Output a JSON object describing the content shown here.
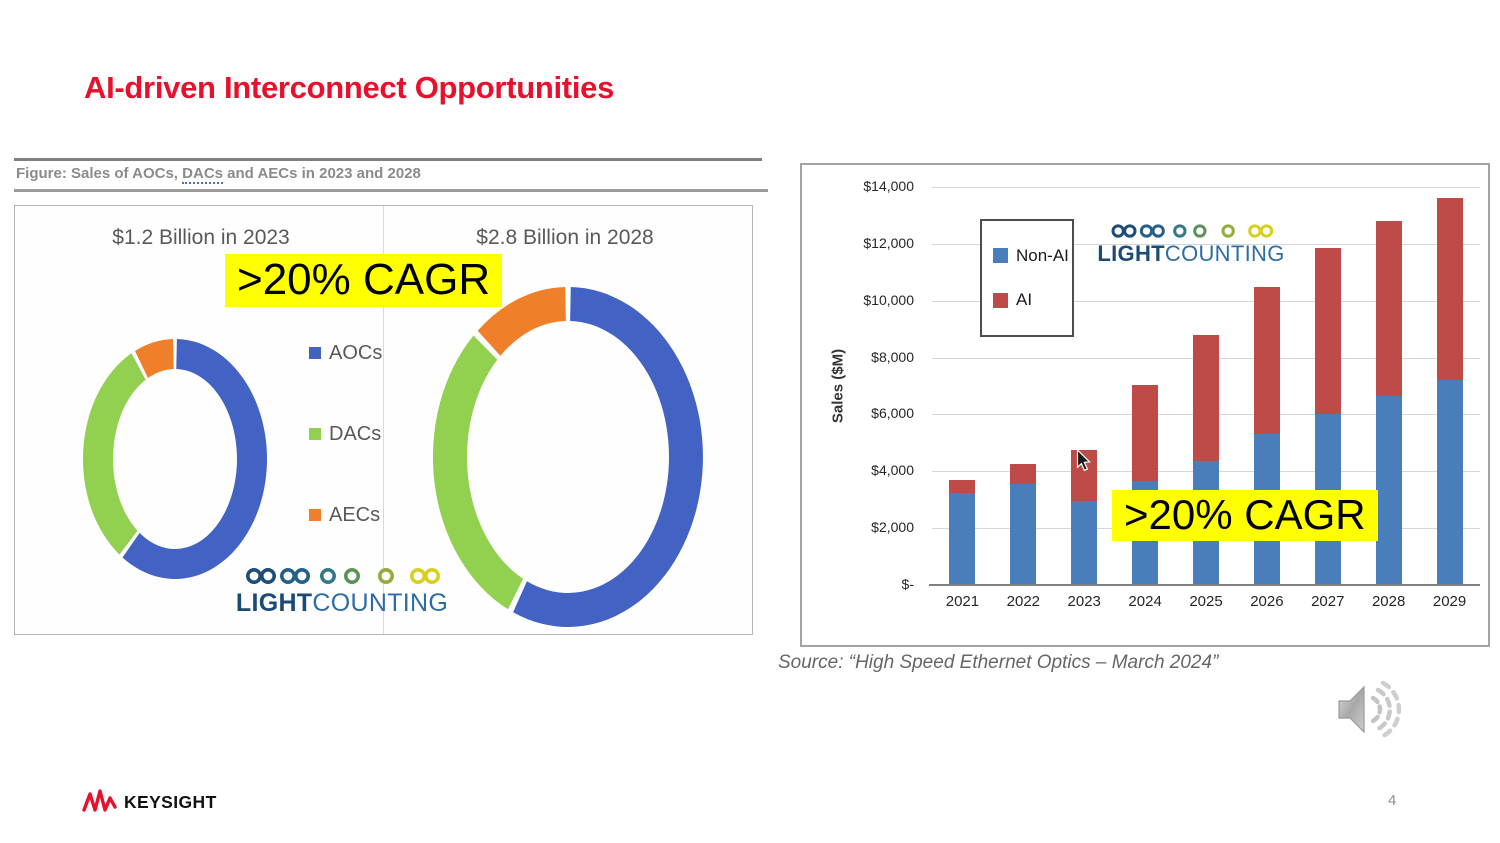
{
  "slide": {
    "title": "AI-driven Interconnect Opportunities",
    "page_number": "4"
  },
  "brand": {
    "keysight_label": "KEYSIGHT",
    "keysight_red": "#e8112d",
    "lc_light": "LIGHT",
    "lc_counting": "COUNTING",
    "lc_navy": "#1b4a77",
    "lc_steel": "#2e6da4"
  },
  "left_figure": {
    "caption_prefix": "Figure: Sales of AOCs, ",
    "caption_dacs": "DACs",
    "caption_suffix": " and AECs in 2023 and 2028",
    "cagr_badge": ">20% CAGR",
    "highlight_color": "#ffff00",
    "legend": [
      {
        "label": "AOCs",
        "color": "#4262c4"
      },
      {
        "label": "DACs",
        "color": "#92d050"
      },
      {
        "label": "AECs",
        "color": "#f07f29"
      }
    ]
  },
  "right_chart": {
    "cagr_badge": ">20% CAGR",
    "highlight_color": "#ffff00",
    "source": "Source: “High Speed Ethernet Optics – March 2024”"
  },
  "chart_data": [
    {
      "type": "pie",
      "subtype": "donut",
      "title": "$1.2 Billion in 2023",
      "total_label": "$1.2 Billion",
      "year": "2023",
      "labels": [
        "AOCs",
        "DACs",
        "AECs"
      ],
      "values_pct": [
        60,
        32.5,
        7.5
      ],
      "values_est_billions": [
        0.72,
        0.39,
        0.09
      ],
      "colors": [
        "#4262c4",
        "#92d050",
        "#f07f29"
      ],
      "legend_position": "center-between-donuts"
    },
    {
      "type": "pie",
      "subtype": "donut",
      "title": "$2.8 Billion in 2028",
      "total_label": "$2.8 Billion",
      "year": "2028",
      "labels": [
        "AOCs",
        "DACs",
        "AECs"
      ],
      "values_pct": [
        57,
        31,
        12
      ],
      "values_est_billions": [
        1.6,
        0.87,
        0.33
      ],
      "colors": [
        "#4262c4",
        "#92d050",
        "#f07f29"
      ],
      "legend_position": "center-between-donuts"
    },
    {
      "type": "bar",
      "stacked": true,
      "title": "",
      "categories": [
        "2021",
        "2022",
        "2023",
        "2024",
        "2025",
        "2026",
        "2027",
        "2028",
        "2029"
      ],
      "series": [
        {
          "name": "Non-AI",
          "color": "#4a7ebb",
          "values": [
            3250,
            3550,
            2950,
            3650,
            4350,
            5300,
            6000,
            6650,
            7200
          ]
        },
        {
          "name": "AI",
          "color": "#be4b48",
          "values": [
            450,
            700,
            1800,
            3400,
            4450,
            5200,
            5850,
            6150,
            6400
          ]
        }
      ],
      "totals_est": [
        3700,
        4250,
        4750,
        7050,
        8800,
        10500,
        11850,
        12800,
        13600
      ],
      "xlabel": "",
      "ylabel": "Sales ($M)",
      "ylim": [
        0,
        14000
      ],
      "ytick_step": 2000,
      "ytick_labels": [
        "$-",
        "$2,000",
        "$4,000",
        "$6,000",
        "$8,000",
        "$10,000",
        "$12,000",
        "$14,000"
      ],
      "grid": true,
      "legend_position": "top-left-inside"
    }
  ]
}
